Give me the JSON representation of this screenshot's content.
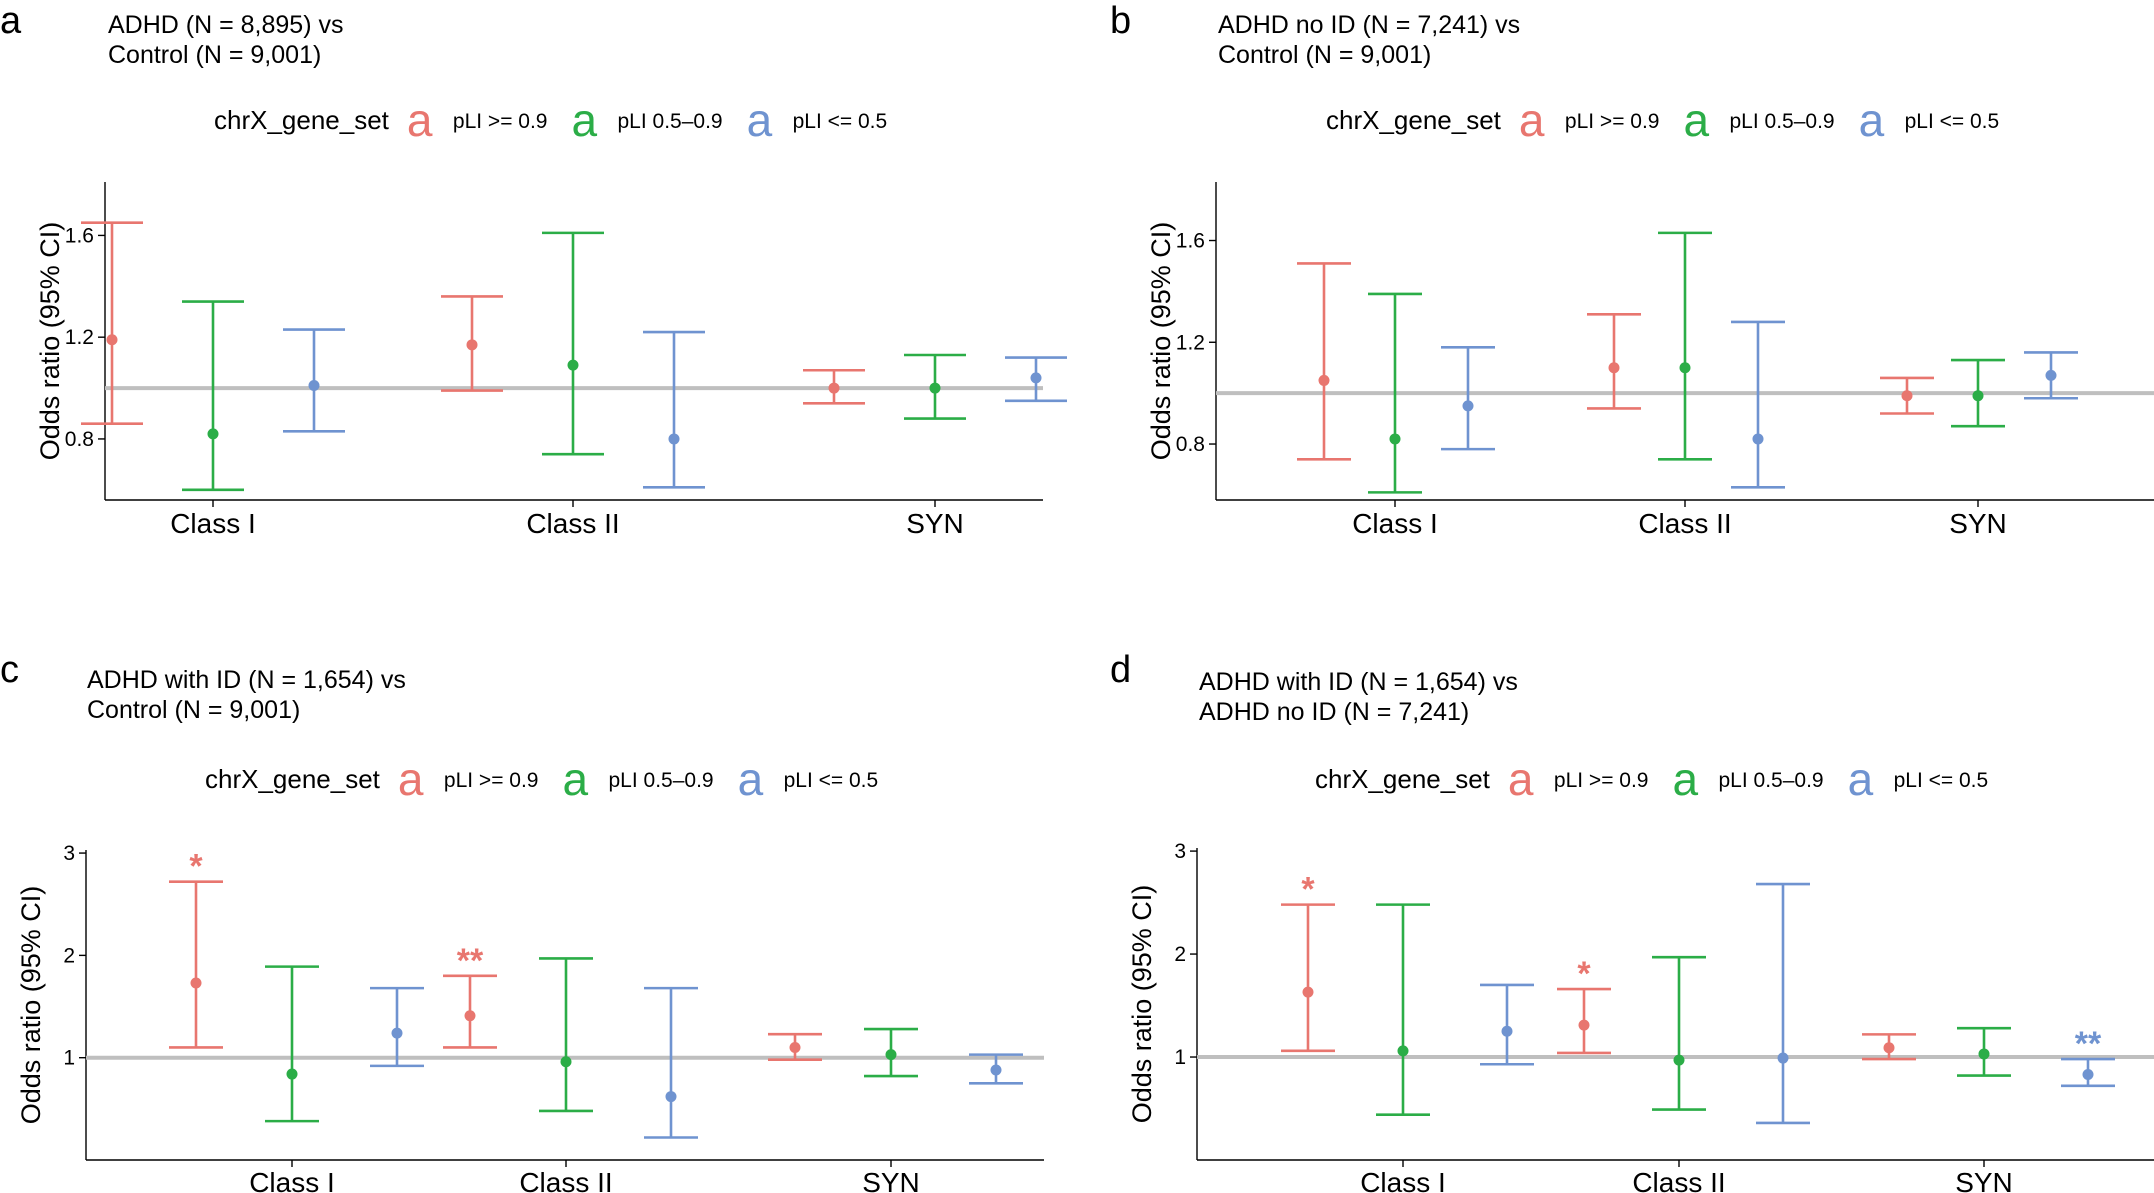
{
  "chart_data": [
    {
      "panel": "a",
      "type": "errorbar",
      "title": [
        "ADHD (N = 8,895) vs",
        "Control (N = 9,001)"
      ],
      "legend": {
        "title": "chrX_gene_set",
        "key_glyph": "a",
        "entries": [
          "pLI >= 0.9",
          "pLI 0.5–0.9",
          "pLI <= 0.5"
        ]
      },
      "ylabel": "Odds ratio (95% CI)",
      "ylim": [
        0.56,
        1.81
      ],
      "yticks": [
        0.8,
        1.2,
        1.6
      ],
      "ytick_labels": [
        "0.8",
        "1.2",
        "1.6"
      ],
      "reference_line": 1.0,
      "categories": [
        "Class I",
        "Class II",
        "SYN"
      ],
      "series": [
        {
          "name": "pLI >= 0.9",
          "color": "#e8766f",
          "or": [
            1.19,
            1.17,
            1.0
          ],
          "lower": [
            0.86,
            0.99,
            0.94
          ],
          "upper": [
            1.65,
            1.36,
            1.07
          ],
          "sig": [
            "",
            "",
            ""
          ]
        },
        {
          "name": "pLI 0.5–0.9",
          "color": "#2bad47",
          "or": [
            0.82,
            1.09,
            1.0
          ],
          "lower": [
            0.6,
            0.74,
            0.88
          ],
          "upper": [
            1.34,
            1.61,
            1.13
          ],
          "sig": [
            "",
            "",
            ""
          ]
        },
        {
          "name": "pLI <= 0.5",
          "color": "#6f93d0",
          "or": [
            1.01,
            0.8,
            1.04
          ],
          "lower": [
            0.83,
            0.61,
            0.95
          ],
          "upper": [
            1.23,
            1.22,
            1.12
          ],
          "sig": [
            "",
            "",
            ""
          ]
        }
      ]
    },
    {
      "panel": "b",
      "type": "errorbar",
      "title": [
        "ADHD no ID (N = 7,241) vs",
        "Control (N = 9,001)"
      ],
      "legend": {
        "title": "chrX_gene_set",
        "key_glyph": "a",
        "entries": [
          "pLI >= 0.9",
          "pLI 0.5–0.9",
          "pLI <= 0.5"
        ]
      },
      "ylabel": "Odds ratio (95% CI)",
      "ylim": [
        0.58,
        1.83
      ],
      "yticks": [
        0.8,
        1.2,
        1.6
      ],
      "ytick_labels": [
        "0.8",
        "1.2",
        "1.6"
      ],
      "reference_line": 1.0,
      "categories": [
        "Class I",
        "Class II",
        "SYN"
      ],
      "series": [
        {
          "name": "pLI >= 0.9",
          "color": "#e8766f",
          "or": [
            1.05,
            1.1,
            0.99
          ],
          "lower": [
            0.74,
            0.94,
            0.92
          ],
          "upper": [
            1.51,
            1.31,
            1.06
          ],
          "sig": [
            "",
            "",
            ""
          ]
        },
        {
          "name": "pLI 0.5–0.9",
          "color": "#2bad47",
          "or": [
            0.82,
            1.1,
            0.99
          ],
          "lower": [
            0.61,
            0.74,
            0.87
          ],
          "upper": [
            1.39,
            1.63,
            1.13
          ],
          "sig": [
            "",
            "",
            ""
          ]
        },
        {
          "name": "pLI <= 0.5",
          "color": "#6f93d0",
          "or": [
            0.95,
            0.82,
            1.07
          ],
          "lower": [
            0.78,
            0.63,
            0.98
          ],
          "upper": [
            1.18,
            1.28,
            1.16
          ],
          "sig": [
            "",
            "",
            ""
          ]
        }
      ]
    },
    {
      "panel": "c",
      "type": "errorbar",
      "title": [
        "ADHD with ID (N = 1,654) vs",
        "Control (N = 9,001)"
      ],
      "legend": {
        "title": "chrX_gene_set",
        "key_glyph": "a",
        "entries": [
          "pLI >= 0.9",
          "pLI 0.5–0.9",
          "pLI <= 0.5"
        ]
      },
      "ylabel": "Odds ratio (95% CI)",
      "ylim": [
        0.0,
        3.03
      ],
      "yticks": [
        1,
        2,
        3
      ],
      "ytick_labels": [
        "1",
        "2",
        "3"
      ],
      "reference_line": 1.0,
      "categories": [
        "Class I",
        "Class II",
        "SYN"
      ],
      "series": [
        {
          "name": "pLI >= 0.9",
          "color": "#e8766f",
          "or": [
            1.73,
            1.41,
            1.1
          ],
          "lower": [
            1.1,
            1.1,
            0.98
          ],
          "upper": [
            2.72,
            1.8,
            1.23
          ],
          "sig": [
            "*",
            "**",
            ""
          ]
        },
        {
          "name": "pLI 0.5–0.9",
          "color": "#2bad47",
          "or": [
            0.84,
            0.96,
            1.03
          ],
          "lower": [
            0.38,
            0.48,
            0.82
          ],
          "upper": [
            1.89,
            1.97,
            1.28
          ],
          "sig": [
            "",
            "",
            ""
          ]
        },
        {
          "name": "pLI <= 0.5",
          "color": "#6f93d0",
          "or": [
            1.24,
            0.62,
            0.88
          ],
          "lower": [
            0.92,
            0.22,
            0.75
          ],
          "upper": [
            1.68,
            1.68,
            1.03
          ],
          "sig": [
            "",
            "",
            ""
          ]
        }
      ]
    },
    {
      "panel": "d",
      "type": "errorbar",
      "title": [
        "ADHD with ID (N = 1,654) vs",
        "ADHD no ID (N = 7,241)"
      ],
      "legend": {
        "title": "chrX_gene_set",
        "key_glyph": "a",
        "entries": [
          "pLI >= 0.9",
          "pLI 0.5–0.9",
          "pLI <= 0.5"
        ]
      },
      "ylabel": "Odds ratio (95% CI)",
      "ylim": [
        0.0,
        3.03
      ],
      "yticks": [
        1,
        2,
        3
      ],
      "ytick_labels": [
        "1",
        "2",
        "3"
      ],
      "reference_line": 1.0,
      "categories": [
        "Class I",
        "Class II",
        "SYN"
      ],
      "series": [
        {
          "name": "pLI >= 0.9",
          "color": "#e8766f",
          "or": [
            1.63,
            1.31,
            1.09
          ],
          "lower": [
            1.06,
            1.04,
            0.98
          ],
          "upper": [
            2.48,
            1.66,
            1.22
          ],
          "sig": [
            "*",
            "*",
            ""
          ]
        },
        {
          "name": "pLI 0.5–0.9",
          "color": "#2bad47",
          "or": [
            1.06,
            0.97,
            1.03
          ],
          "lower": [
            0.44,
            0.49,
            0.82
          ],
          "upper": [
            2.48,
            1.97,
            1.28
          ],
          "sig": [
            "",
            "",
            ""
          ]
        },
        {
          "name": "pLI <= 0.5",
          "color": "#6f93d0",
          "or": [
            1.25,
            0.99,
            0.83
          ],
          "lower": [
            0.93,
            0.36,
            0.72
          ],
          "upper": [
            1.7,
            2.68,
            0.98
          ],
          "sig": [
            "",
            "",
            "**"
          ]
        }
      ]
    }
  ],
  "colors": {
    "reference_line": "#bfbfbf",
    "axis": "#000000"
  }
}
